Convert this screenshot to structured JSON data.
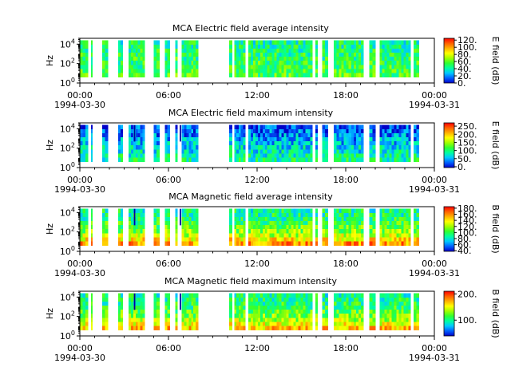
{
  "figure": {
    "time_ticks": [
      "00:00",
      "06:00",
      "12:00",
      "18:00",
      "00:00"
    ],
    "date_start": "1994-03-30",
    "date_end": "1994-03-31",
    "y_ticks": [
      {
        "base": "10",
        "exp": "0"
      },
      {
        "base": "10",
        "exp": "2"
      },
      {
        "base": "10",
        "exp": "4"
      }
    ],
    "colormap": [
      "#0000c8",
      "#0060ff",
      "#00c8ff",
      "#00ffa0",
      "#30ff30",
      "#a0ff00",
      "#ffff00",
      "#ffb000",
      "#ff6000",
      "#ff0000"
    ]
  },
  "chart_data": [
    {
      "type": "heatmap",
      "title": "MCA  Electric field average intensity",
      "ylabel": "Hz",
      "yscale": "log",
      "ylim": [
        1,
        40000
      ],
      "x_range_hours": [
        0,
        24
      ],
      "colorbar_label": "E field (dB)",
      "colorbar_range": [
        0,
        125
      ],
      "colorbar_ticks": [
        {
          "v": 0,
          "label": "0."
        },
        {
          "v": 20,
          "label": "20."
        },
        {
          "v": 40,
          "label": "40."
        },
        {
          "v": 60,
          "label": "60."
        },
        {
          "v": 80,
          "label": "80."
        },
        {
          "v": 100,
          "label": "100."
        },
        {
          "v": 120,
          "label": "120."
        }
      ],
      "segments_hours": [
        [
          0.0,
          0.55
        ],
        [
          0.75,
          0.85
        ],
        [
          1.5,
          1.9
        ],
        [
          2.6,
          2.9
        ],
        [
          3.3,
          4.4
        ],
        [
          5.0,
          5.4
        ],
        [
          5.75,
          6.1
        ],
        [
          6.45,
          6.6
        ],
        [
          6.9,
          8.0
        ],
        [
          10.1,
          10.3
        ],
        [
          10.45,
          11.2
        ],
        [
          11.4,
          15.75
        ],
        [
          15.95,
          16.1
        ],
        [
          16.4,
          16.8
        ],
        [
          17.2,
          19.2
        ],
        [
          19.6,
          20.0
        ],
        [
          20.3,
          22.4
        ],
        [
          22.6,
          22.95
        ]
      ],
      "spikes_hours": [],
      "low_band_boost": 0.0,
      "mean_level": 0.45
    },
    {
      "type": "heatmap",
      "title": "MCA  Electric field maximum intensity",
      "ylabel": "Hz",
      "yscale": "log",
      "ylim": [
        1,
        40000
      ],
      "x_range_hours": [
        0,
        24
      ],
      "colorbar_label": "E field (dB)",
      "colorbar_range": [
        -5,
        270
      ],
      "colorbar_ticks": [
        {
          "v": 0,
          "label": "0."
        },
        {
          "v": 50,
          "label": "50."
        },
        {
          "v": 100,
          "label": "100."
        },
        {
          "v": 150,
          "label": "150."
        },
        {
          "v": 200,
          "label": "200."
        },
        {
          "v": 250,
          "label": "250."
        }
      ],
      "segments_hours": [
        [
          0.0,
          0.55
        ],
        [
          0.75,
          0.85
        ],
        [
          1.5,
          1.9
        ],
        [
          2.6,
          2.9
        ],
        [
          3.3,
          4.4
        ],
        [
          5.0,
          5.4
        ],
        [
          5.75,
          6.1
        ],
        [
          6.45,
          6.6
        ],
        [
          6.9,
          8.0
        ],
        [
          10.1,
          10.3
        ],
        [
          10.45,
          11.2
        ],
        [
          11.4,
          15.75
        ],
        [
          15.95,
          16.1
        ],
        [
          16.4,
          16.8
        ],
        [
          17.2,
          19.2
        ],
        [
          19.6,
          20.0
        ],
        [
          20.3,
          22.4
        ],
        [
          22.6,
          22.95
        ]
      ],
      "spikes_hours": [
        3.7,
        6.8
      ],
      "low_band_boost": 0.0,
      "mean_level": 0.35
    },
    {
      "type": "heatmap",
      "title": "MCA  Magnetic field average intensity",
      "ylabel": "Hz",
      "yscale": "log",
      "ylim": [
        1,
        40000
      ],
      "x_range_hours": [
        0,
        24
      ],
      "colorbar_label": "B field (dB)",
      "colorbar_range": [
        38,
        185
      ],
      "colorbar_ticks": [
        {
          "v": 40,
          "label": "40."
        },
        {
          "v": 60,
          "label": "60."
        },
        {
          "v": 80,
          "label": "80."
        },
        {
          "v": 100,
          "label": "100."
        },
        {
          "v": 120,
          "label": "120."
        },
        {
          "v": 140,
          "label": "140."
        },
        {
          "v": 160,
          "label": "160."
        },
        {
          "v": 180,
          "label": "180."
        }
      ],
      "segments_hours": [
        [
          0.0,
          0.55
        ],
        [
          0.75,
          0.85
        ],
        [
          1.5,
          1.9
        ],
        [
          2.6,
          2.9
        ],
        [
          3.3,
          4.4
        ],
        [
          5.0,
          5.4
        ],
        [
          5.75,
          6.1
        ],
        [
          6.45,
          6.6
        ],
        [
          6.9,
          8.0
        ],
        [
          10.1,
          10.3
        ],
        [
          10.45,
          11.2
        ],
        [
          11.4,
          15.75
        ],
        [
          15.95,
          16.1
        ],
        [
          16.4,
          16.8
        ],
        [
          17.2,
          19.2
        ],
        [
          19.6,
          20.0
        ],
        [
          20.3,
          22.4
        ],
        [
          22.6,
          22.95
        ]
      ],
      "spikes_hours": [
        3.7,
        6.8
      ],
      "low_band_boost": 0.35,
      "mean_level": 0.45
    },
    {
      "type": "heatmap",
      "title": "MCA  Magnetic field maximum intensity",
      "ylabel": "Hz",
      "yscale": "log",
      "ylim": [
        1,
        40000
      ],
      "x_range_hours": [
        0,
        24
      ],
      "colorbar_label": "B field (dB)",
      "colorbar_range": [
        40,
        210
      ],
      "colorbar_ticks": [
        {
          "v": 100,
          "label": "100."
        },
        {
          "v": 200,
          "label": "200."
        }
      ],
      "segments_hours": [
        [
          0.0,
          0.55
        ],
        [
          0.75,
          0.85
        ],
        [
          1.5,
          1.9
        ],
        [
          2.6,
          2.9
        ],
        [
          3.3,
          4.4
        ],
        [
          5.0,
          5.4
        ],
        [
          5.75,
          6.1
        ],
        [
          6.45,
          6.6
        ],
        [
          6.9,
          8.0
        ],
        [
          10.1,
          10.3
        ],
        [
          10.45,
          11.2
        ],
        [
          11.4,
          15.75
        ],
        [
          15.95,
          16.1
        ],
        [
          16.4,
          16.8
        ],
        [
          17.2,
          19.2
        ],
        [
          19.6,
          20.0
        ],
        [
          20.3,
          22.4
        ],
        [
          22.6,
          22.95
        ]
      ],
      "spikes_hours": [
        3.7,
        6.8
      ],
      "low_band_boost": 0.3,
      "mean_level": 0.45
    }
  ]
}
